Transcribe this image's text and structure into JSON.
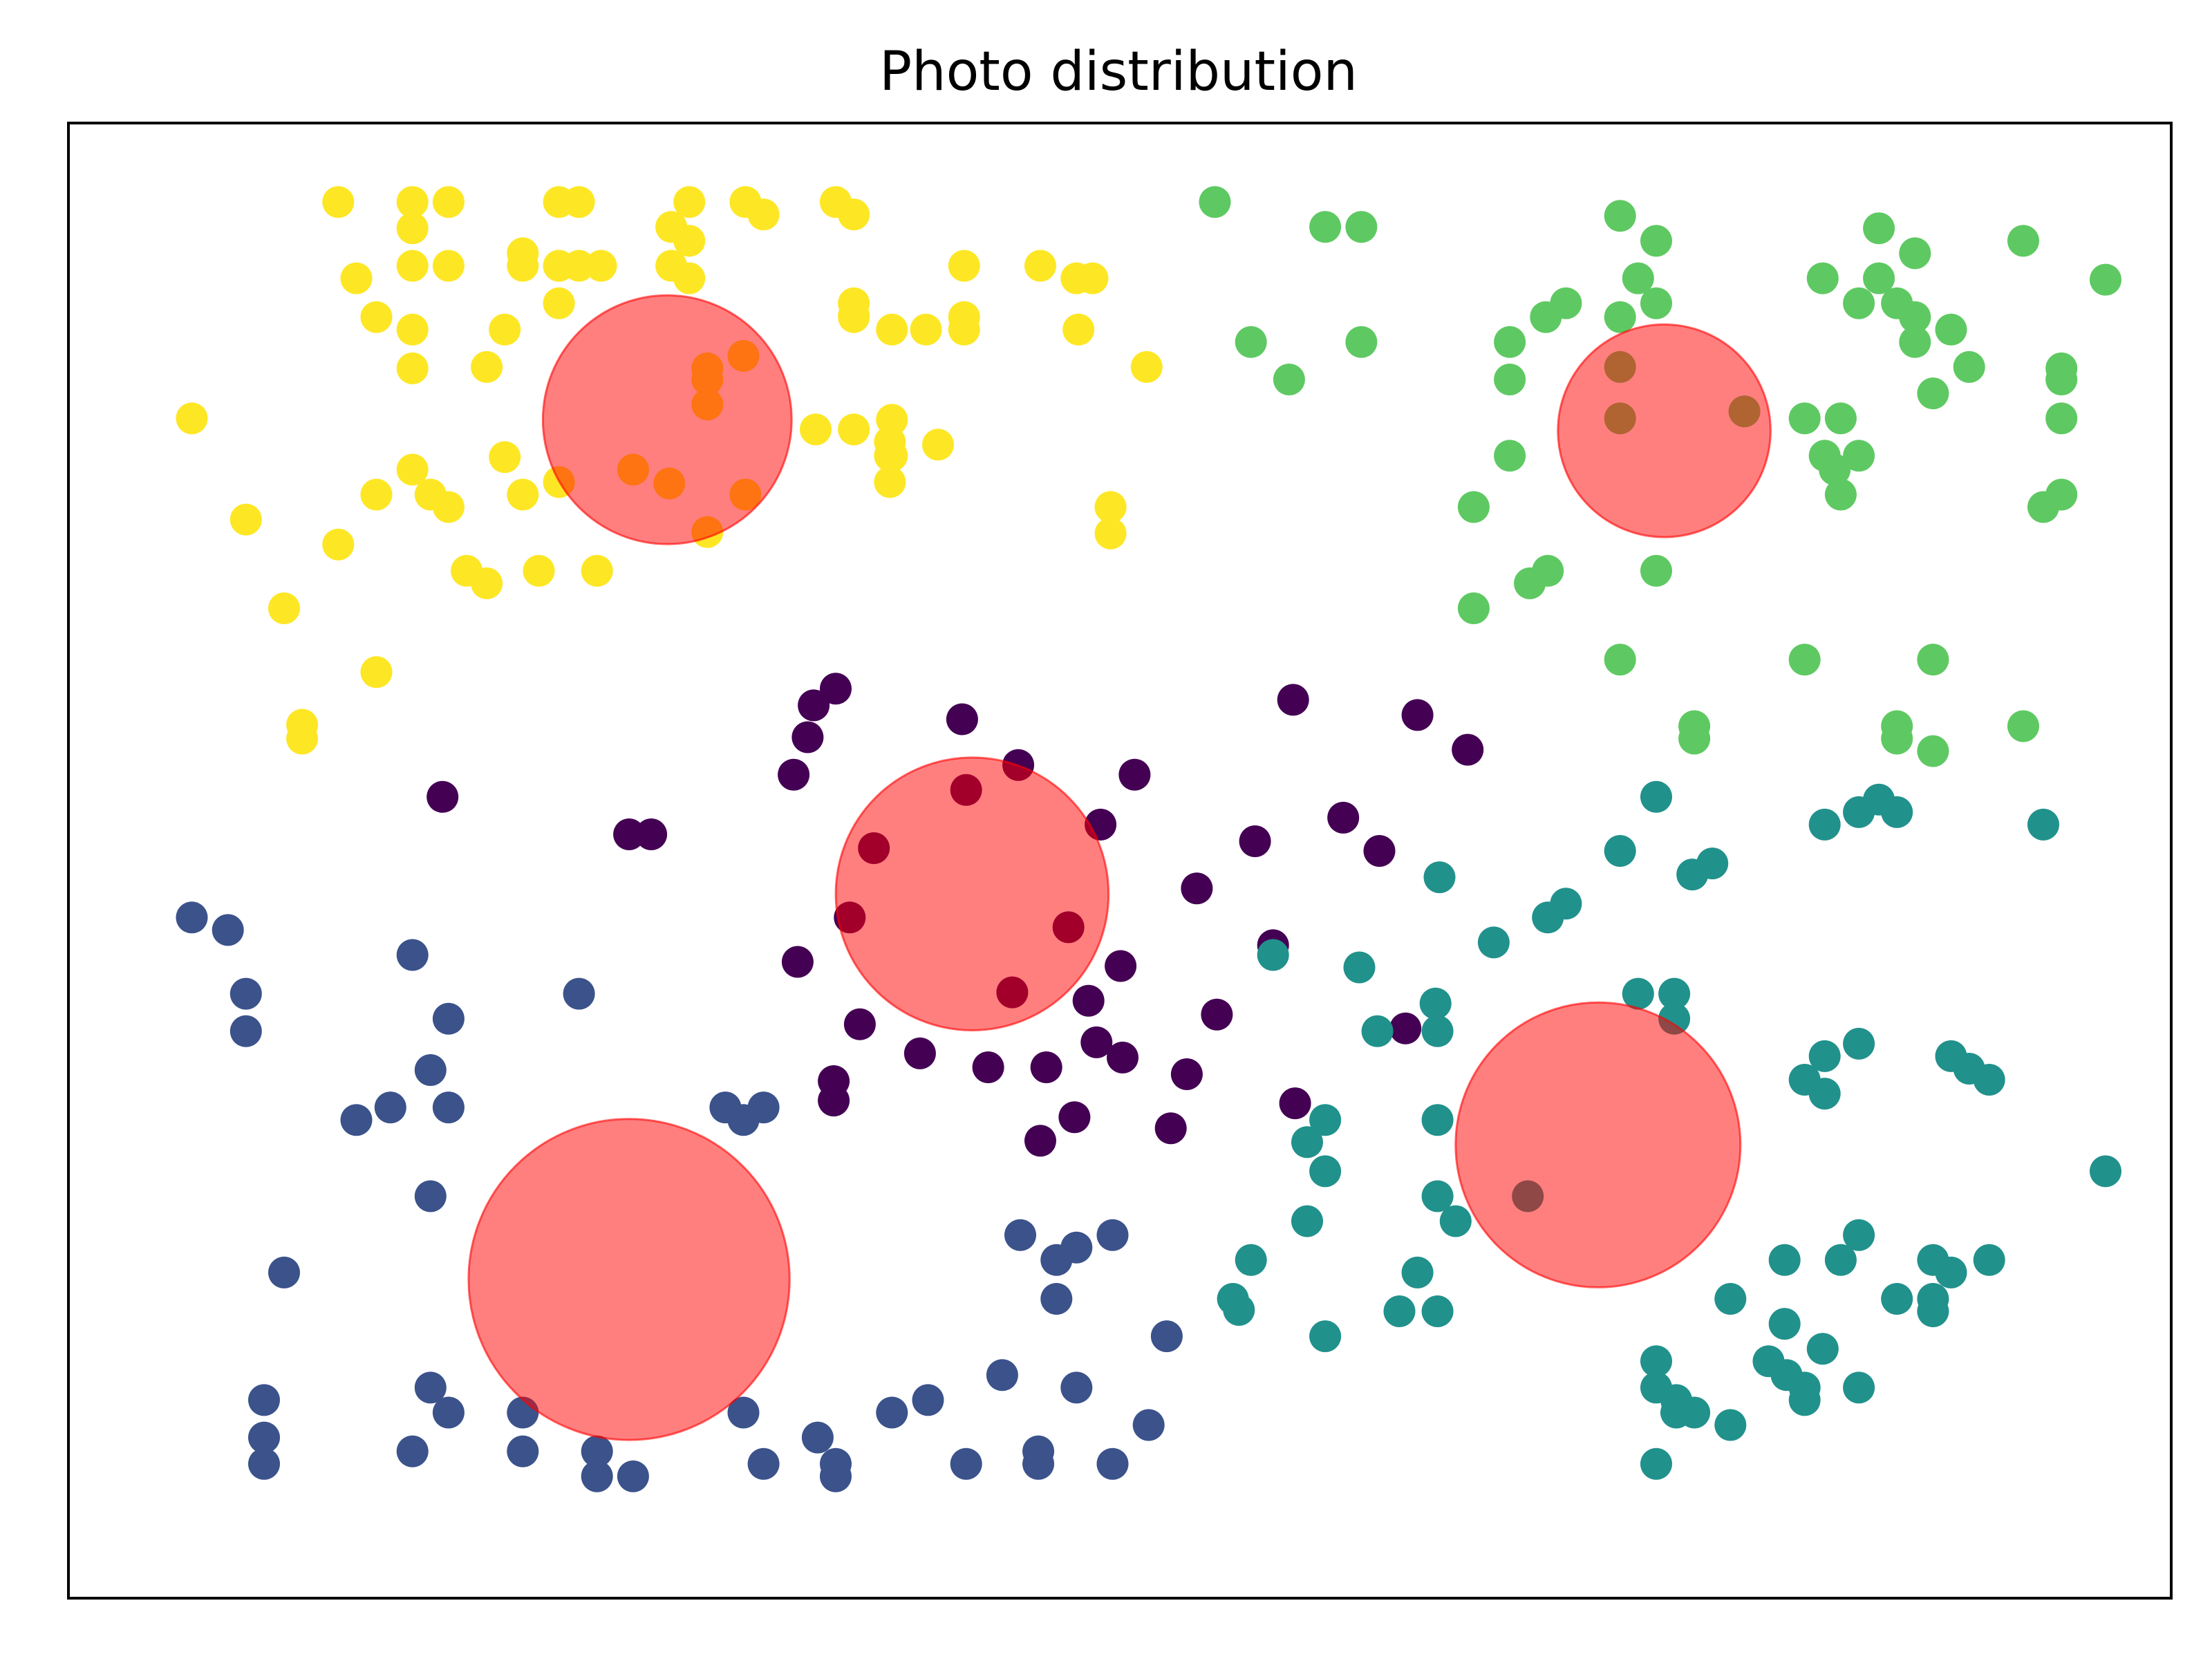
{
  "chart_data": {
    "type": "scatter",
    "title": "Photo distribution",
    "xlabel": "",
    "ylabel": "",
    "xlim": [
      0,
      1
    ],
    "ylim": [
      0,
      1
    ],
    "axis_ticks_visible": false,
    "grid": false,
    "legend": "none",
    "series": [
      {
        "color": "#440154",
        "points": [
          [
            0.386,
            0.497
          ],
          [
            0.43,
            0.59
          ],
          [
            0.458,
            0.557
          ],
          [
            0.499,
            0.514
          ],
          [
            0.547,
            0.468
          ],
          [
            0.509,
            0.412
          ],
          [
            0.493,
            0.387
          ],
          [
            0.483,
            0.44
          ],
          [
            0.542,
            0.334
          ],
          [
            0.596,
            0.313
          ],
          [
            0.557,
            0.377
          ],
          [
            0.585,
            0.427
          ],
          [
            0.651,
            0.367
          ],
          [
            0.638,
            0.495
          ],
          [
            0.682,
            0.568
          ],
          [
            0.657,
            0.593
          ],
          [
            0.595,
            0.604
          ],
          [
            0.62,
            0.519
          ],
          [
            0.576,
            0.502
          ],
          [
            0.516,
            0.55
          ],
          [
            0.455,
            0.393
          ],
          [
            0.374,
            0.447
          ],
          [
            0.348,
            0.415
          ],
          [
            0.379,
            0.37
          ],
          [
            0.409,
            0.349
          ],
          [
            0.366,
            0.315
          ],
          [
            0.366,
            0.329
          ],
          [
            0.432,
            0.539
          ],
          [
            0.472,
            0.339
          ],
          [
            0.469,
            0.286
          ],
          [
            0.534,
            0.295
          ],
          [
            0.443,
            0.339
          ],
          [
            0.51,
            0.346
          ],
          [
            0.486,
            0.303
          ],
          [
            0.367,
            0.612
          ],
          [
            0.356,
            0.6
          ],
          [
            0.346,
            0.55
          ],
          [
            0.353,
            0.577
          ],
          [
            0.171,
            0.534
          ],
          [
            0.264,
            0.507
          ],
          [
            0.275,
            0.507
          ],
          [
            0.497,
            0.357
          ]
        ]
      },
      {
        "color": "#3b528b",
        "points": [
          [
            0.046,
            0.447
          ],
          [
            0.064,
            0.438
          ],
          [
            0.073,
            0.392
          ],
          [
            0.073,
            0.365
          ],
          [
            0.156,
            0.42
          ],
          [
            0.174,
            0.374
          ],
          [
            0.165,
            0.337
          ],
          [
            0.145,
            0.31
          ],
          [
            0.174,
            0.31
          ],
          [
            0.128,
            0.301
          ],
          [
            0.239,
            0.392
          ],
          [
            0.165,
            0.246
          ],
          [
            0.092,
            0.191
          ],
          [
            0.082,
            0.099
          ],
          [
            0.082,
            0.072
          ],
          [
            0.082,
            0.053
          ],
          [
            0.165,
            0.108
          ],
          [
            0.156,
            0.062
          ],
          [
            0.174,
            0.09
          ],
          [
            0.211,
            0.09
          ],
          [
            0.211,
            0.062
          ],
          [
            0.248,
            0.062
          ],
          [
            0.248,
            0.044
          ],
          [
            0.266,
            0.044
          ],
          [
            0.321,
            0.09
          ],
          [
            0.331,
            0.053
          ],
          [
            0.358,
            0.072
          ],
          [
            0.367,
            0.053
          ],
          [
            0.367,
            0.044
          ],
          [
            0.395,
            0.09
          ],
          [
            0.413,
            0.099
          ],
          [
            0.432,
            0.053
          ],
          [
            0.468,
            0.062
          ],
          [
            0.468,
            0.053
          ],
          [
            0.505,
            0.053
          ],
          [
            0.523,
            0.081
          ],
          [
            0.45,
            0.117
          ],
          [
            0.487,
            0.108
          ],
          [
            0.459,
            0.218
          ],
          [
            0.477,
            0.2
          ],
          [
            0.487,
            0.209
          ],
          [
            0.505,
            0.218
          ],
          [
            0.477,
            0.172
          ],
          [
            0.532,
            0.145
          ],
          [
            0.312,
            0.31
          ],
          [
            0.321,
            0.301
          ],
          [
            0.331,
            0.31
          ]
        ]
      },
      {
        "color": "#21918c",
        "points": [
          [
            0.668,
            0.476
          ],
          [
            0.628,
            0.411
          ],
          [
            0.666,
            0.385
          ],
          [
            0.667,
            0.365
          ],
          [
            0.637,
            0.365
          ],
          [
            0.611,
            0.301
          ],
          [
            0.611,
            0.264
          ],
          [
            0.667,
            0.301
          ],
          [
            0.667,
            0.246
          ],
          [
            0.676,
            0.228
          ],
          [
            0.602,
            0.228
          ],
          [
            0.574,
            0.2
          ],
          [
            0.565,
            0.172
          ],
          [
            0.611,
            0.145
          ],
          [
            0.648,
            0.163
          ],
          [
            0.667,
            0.163
          ],
          [
            0.712,
            0.246
          ],
          [
            0.695,
            0.429
          ],
          [
            0.722,
            0.447
          ],
          [
            0.731,
            0.457
          ],
          [
            0.758,
            0.495
          ],
          [
            0.776,
            0.534
          ],
          [
            0.794,
            0.478
          ],
          [
            0.804,
            0.486
          ],
          [
            0.767,
            0.392
          ],
          [
            0.785,
            0.392
          ],
          [
            0.785,
            0.374
          ],
          [
            0.84,
            0.2
          ],
          [
            0.813,
            0.172
          ],
          [
            0.84,
            0.154
          ],
          [
            0.86,
            0.347
          ],
          [
            0.877,
            0.356
          ],
          [
            0.86,
            0.32
          ],
          [
            0.85,
            0.33
          ],
          [
            0.877,
            0.218
          ],
          [
            0.868,
            0.2
          ],
          [
            0.896,
            0.172
          ],
          [
            0.914,
            0.2
          ],
          [
            0.914,
            0.172
          ],
          [
            0.914,
            0.163
          ],
          [
            0.923,
            0.347
          ],
          [
            0.932,
            0.338
          ],
          [
            0.942,
            0.33
          ],
          [
            0.942,
            0.2
          ],
          [
            0.923,
            0.191
          ],
          [
            1.0,
            0.264
          ],
          [
            0.969,
            0.514
          ],
          [
            0.86,
            0.514
          ],
          [
            0.877,
            0.523
          ],
          [
            0.887,
            0.532
          ],
          [
            0.896,
            0.523
          ],
          [
            0.776,
            0.127
          ],
          [
            0.776,
            0.108
          ],
          [
            0.786,
            0.099
          ],
          [
            0.795,
            0.09
          ],
          [
            0.786,
            0.09
          ],
          [
            0.813,
            0.081
          ],
          [
            0.832,
            0.127
          ],
          [
            0.841,
            0.117
          ],
          [
            0.85,
            0.108
          ],
          [
            0.85,
            0.099
          ],
          [
            0.877,
            0.108
          ],
          [
            0.859,
            0.136
          ],
          [
            0.776,
            0.053
          ],
          [
            0.568,
            0.164
          ],
          [
            0.602,
            0.285
          ],
          [
            0.657,
            0.191
          ],
          [
            0.585,
            0.42
          ]
        ]
      },
      {
        "color": "#5ec962",
        "points": [
          [
            0.556,
            0.963
          ],
          [
            0.611,
            0.945
          ],
          [
            0.629,
            0.945
          ],
          [
            0.574,
            0.862
          ],
          [
            0.629,
            0.862
          ],
          [
            0.593,
            0.835
          ],
          [
            0.703,
            0.862
          ],
          [
            0.721,
            0.88
          ],
          [
            0.758,
            0.88
          ],
          [
            0.758,
            0.953
          ],
          [
            0.776,
            0.935
          ],
          [
            0.767,
            0.908
          ],
          [
            0.776,
            0.89
          ],
          [
            0.758,
            0.844
          ],
          [
            0.703,
            0.835
          ],
          [
            0.758,
            0.807
          ],
          [
            0.703,
            0.78
          ],
          [
            0.685,
            0.743
          ],
          [
            0.722,
            0.697
          ],
          [
            0.713,
            0.688
          ],
          [
            0.685,
            0.67
          ],
          [
            0.776,
            0.697
          ],
          [
            0.758,
            0.633
          ],
          [
            0.795,
            0.576
          ],
          [
            0.795,
            0.585
          ],
          [
            0.85,
            0.807
          ],
          [
            0.868,
            0.807
          ],
          [
            0.877,
            0.78
          ],
          [
            0.868,
            0.752
          ],
          [
            0.859,
            0.908
          ],
          [
            0.877,
            0.89
          ],
          [
            0.896,
            0.89
          ],
          [
            0.887,
            0.908
          ],
          [
            0.905,
            0.88
          ],
          [
            0.887,
            0.944
          ],
          [
            0.905,
            0.926
          ],
          [
            0.905,
            0.862
          ],
          [
            0.923,
            0.871
          ],
          [
            0.914,
            0.825
          ],
          [
            0.932,
            0.844
          ],
          [
            0.959,
            0.935
          ],
          [
            0.978,
            0.843
          ],
          [
            0.978,
            0.835
          ],
          [
            0.978,
            0.807
          ],
          [
            0.969,
            0.743
          ],
          [
            0.978,
            0.752
          ],
          [
            1.0,
            0.907
          ],
          [
            0.85,
            0.633
          ],
          [
            0.914,
            0.633
          ],
          [
            0.896,
            0.585
          ],
          [
            0.896,
            0.576
          ],
          [
            0.914,
            0.567
          ],
          [
            0.959,
            0.585
          ],
          [
            0.731,
            0.89
          ],
          [
            0.82,
            0.812
          ],
          [
            0.86,
            0.78
          ],
          [
            0.865,
            0.77
          ]
        ]
      },
      {
        "color": "#fde725",
        "points": [
          [
            0.046,
            0.807
          ],
          [
            0.073,
            0.734
          ],
          [
            0.092,
            0.67
          ],
          [
            0.101,
            0.586
          ],
          [
            0.101,
            0.576
          ],
          [
            0.119,
            0.963
          ],
          [
            0.128,
            0.908
          ],
          [
            0.138,
            0.88
          ],
          [
            0.138,
            0.752
          ],
          [
            0.119,
            0.716
          ],
          [
            0.138,
            0.624
          ],
          [
            0.156,
            0.963
          ],
          [
            0.156,
            0.944
          ],
          [
            0.156,
            0.917
          ],
          [
            0.156,
            0.871
          ],
          [
            0.156,
            0.843
          ],
          [
            0.174,
            0.963
          ],
          [
            0.174,
            0.917
          ],
          [
            0.165,
            0.752
          ],
          [
            0.156,
            0.77
          ],
          [
            0.174,
            0.743
          ],
          [
            0.193,
            0.844
          ],
          [
            0.202,
            0.871
          ],
          [
            0.202,
            0.779
          ],
          [
            0.183,
            0.697
          ],
          [
            0.193,
            0.688
          ],
          [
            0.211,
            0.926
          ],
          [
            0.211,
            0.917
          ],
          [
            0.229,
            0.89
          ],
          [
            0.229,
            0.917
          ],
          [
            0.229,
            0.963
          ],
          [
            0.239,
            0.917
          ],
          [
            0.211,
            0.752
          ],
          [
            0.229,
            0.761
          ],
          [
            0.219,
            0.697
          ],
          [
            0.248,
            0.697
          ],
          [
            0.239,
            0.963
          ],
          [
            0.294,
            0.963
          ],
          [
            0.294,
            0.908
          ],
          [
            0.294,
            0.935
          ],
          [
            0.303,
            0.817
          ],
          [
            0.322,
            0.963
          ],
          [
            0.331,
            0.954
          ],
          [
            0.367,
            0.963
          ],
          [
            0.376,
            0.954
          ],
          [
            0.395,
            0.871
          ],
          [
            0.376,
            0.88
          ],
          [
            0.395,
            0.806
          ],
          [
            0.376,
            0.881
          ],
          [
            0.376,
            0.89
          ],
          [
            0.322,
            0.752
          ],
          [
            0.376,
            0.799
          ],
          [
            0.395,
            0.78
          ],
          [
            0.431,
            0.88
          ],
          [
            0.431,
            0.917
          ],
          [
            0.418,
            0.788
          ],
          [
            0.469,
            0.917
          ],
          [
            0.488,
            0.871
          ],
          [
            0.522,
            0.844
          ],
          [
            0.487,
            0.908
          ],
          [
            0.495,
            0.908
          ],
          [
            0.504,
            0.743
          ],
          [
            0.504,
            0.743
          ],
          [
            0.504,
            0.724
          ],
          [
            0.394,
            0.761
          ],
          [
            0.394,
            0.79
          ],
          [
            0.321,
            0.852
          ],
          [
            0.303,
            0.835
          ],
          [
            0.303,
            0.843
          ],
          [
            0.229,
            0.917
          ],
          [
            0.285,
            0.917
          ],
          [
            0.285,
            0.945
          ],
          [
            0.25,
            0.917
          ],
          [
            0.431,
            0.871
          ],
          [
            0.412,
            0.871
          ],
          [
            0.357,
            0.799
          ],
          [
            0.394,
            0.78
          ],
          [
            0.303,
            0.725
          ],
          [
            0.284,
            0.76
          ],
          [
            0.266,
            0.77
          ]
        ]
      }
    ],
    "overlay_circles": {
      "color": "#ff0000",
      "opacity": 0.5,
      "items": [
        {
          "cx": 0.283,
          "cy": 0.806,
          "r": 0.062
        },
        {
          "cx": 0.435,
          "cy": 0.464,
          "r": 0.068
        },
        {
          "cx": 0.264,
          "cy": 0.186,
          "r": 0.08
        },
        {
          "cx": 0.78,
          "cy": 0.798,
          "r": 0.053
        },
        {
          "cx": 0.747,
          "cy": 0.283,
          "r": 0.071
        }
      ]
    }
  }
}
